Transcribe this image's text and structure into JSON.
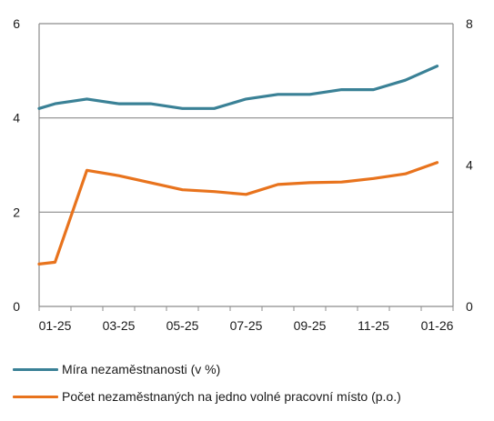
{
  "chart_data": {
    "type": "line",
    "title": "",
    "xlabel": "",
    "x": [
      "01-25",
      "",
      "03-25",
      "",
      "05-25",
      "",
      "07-25",
      "",
      "09-25",
      "",
      "11-25",
      "",
      "01-26"
    ],
    "xtick_labels": [
      "01-25",
      "03-25",
      "05-25",
      "07-25",
      "09-25",
      "11-25",
      "01-26"
    ],
    "grid": "horizontal",
    "legend_placement": "bottom",
    "left_axis": {
      "ylim": [
        0,
        6
      ],
      "ticks": [
        "0",
        "2",
        "4",
        "6"
      ]
    },
    "right_axis": {
      "ylim": [
        0,
        8
      ],
      "ticks": [
        "0",
        "4",
        "8"
      ]
    },
    "series": [
      {
        "name": "Míra nezaměstnanosti (v %)",
        "axis": "left",
        "color": "#3a8196",
        "x": [
          0,
          0.5,
          1.5,
          2.5,
          3.5,
          4.5,
          5.5,
          6.5,
          7.5,
          8.5,
          9.5,
          10.5,
          11.5,
          12.5
        ],
        "values": [
          4.2,
          4.3,
          4.4,
          4.3,
          4.3,
          4.2,
          4.2,
          4.4,
          4.5,
          4.5,
          4.6,
          4.6,
          4.8,
          5.1
        ]
      },
      {
        "name": "Počet nezaměstnaných na jedno volné pracovní místo (p.o.)",
        "axis": "right",
        "color": "#e8731d",
        "x": [
          0,
          0.5,
          1.5,
          2.5,
          3.5,
          4.5,
          5.5,
          6.5,
          7.5,
          8.5,
          9.5,
          10.5,
          11.5,
          12.5
        ],
        "values": [
          1.2,
          1.25,
          3.85,
          3.7,
          3.5,
          3.3,
          3.25,
          3.17,
          3.45,
          3.5,
          3.52,
          3.62,
          3.75,
          4.07
        ]
      }
    ]
  }
}
